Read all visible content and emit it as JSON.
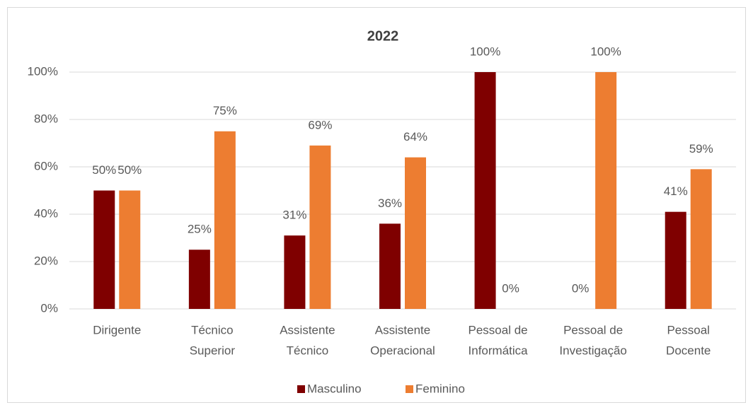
{
  "chart_data": {
    "type": "bar",
    "title": "2022",
    "categories": [
      [
        "Dirigente"
      ],
      [
        "Técnico",
        "Superior"
      ],
      [
        "Assistente",
        "Técnico"
      ],
      [
        "Assistente",
        "Operacional"
      ],
      [
        "Pessoal de",
        "Informática"
      ],
      [
        "Pessoal de",
        "Investigação"
      ],
      [
        "Pessoal",
        "Docente"
      ]
    ],
    "series": [
      {
        "name": "Masculino",
        "color": "#7f0000",
        "values": [
          50,
          25,
          31,
          36,
          100,
          0,
          41
        ],
        "value_labels": [
          "50%",
          "25%",
          "31%",
          "36%",
          "100%",
          "0%",
          "41%"
        ]
      },
      {
        "name": "Feminino",
        "color": "#ed7d31",
        "values": [
          50,
          75,
          69,
          64,
          0,
          100,
          59
        ],
        "value_labels": [
          "50%",
          "75%",
          "69%",
          "64%",
          "0%",
          "100%",
          "59%"
        ]
      }
    ],
    "ylim": [
      0,
      100
    ],
    "yticks": [
      {
        "value": 0,
        "label": "0%"
      },
      {
        "value": 20,
        "label": "20%"
      },
      {
        "value": 40,
        "label": "40%"
      },
      {
        "value": 60,
        "label": "60%"
      },
      {
        "value": 80,
        "label": "80%"
      },
      {
        "value": 100,
        "label": "100%"
      }
    ],
    "grid": true,
    "legend": "bottom"
  }
}
